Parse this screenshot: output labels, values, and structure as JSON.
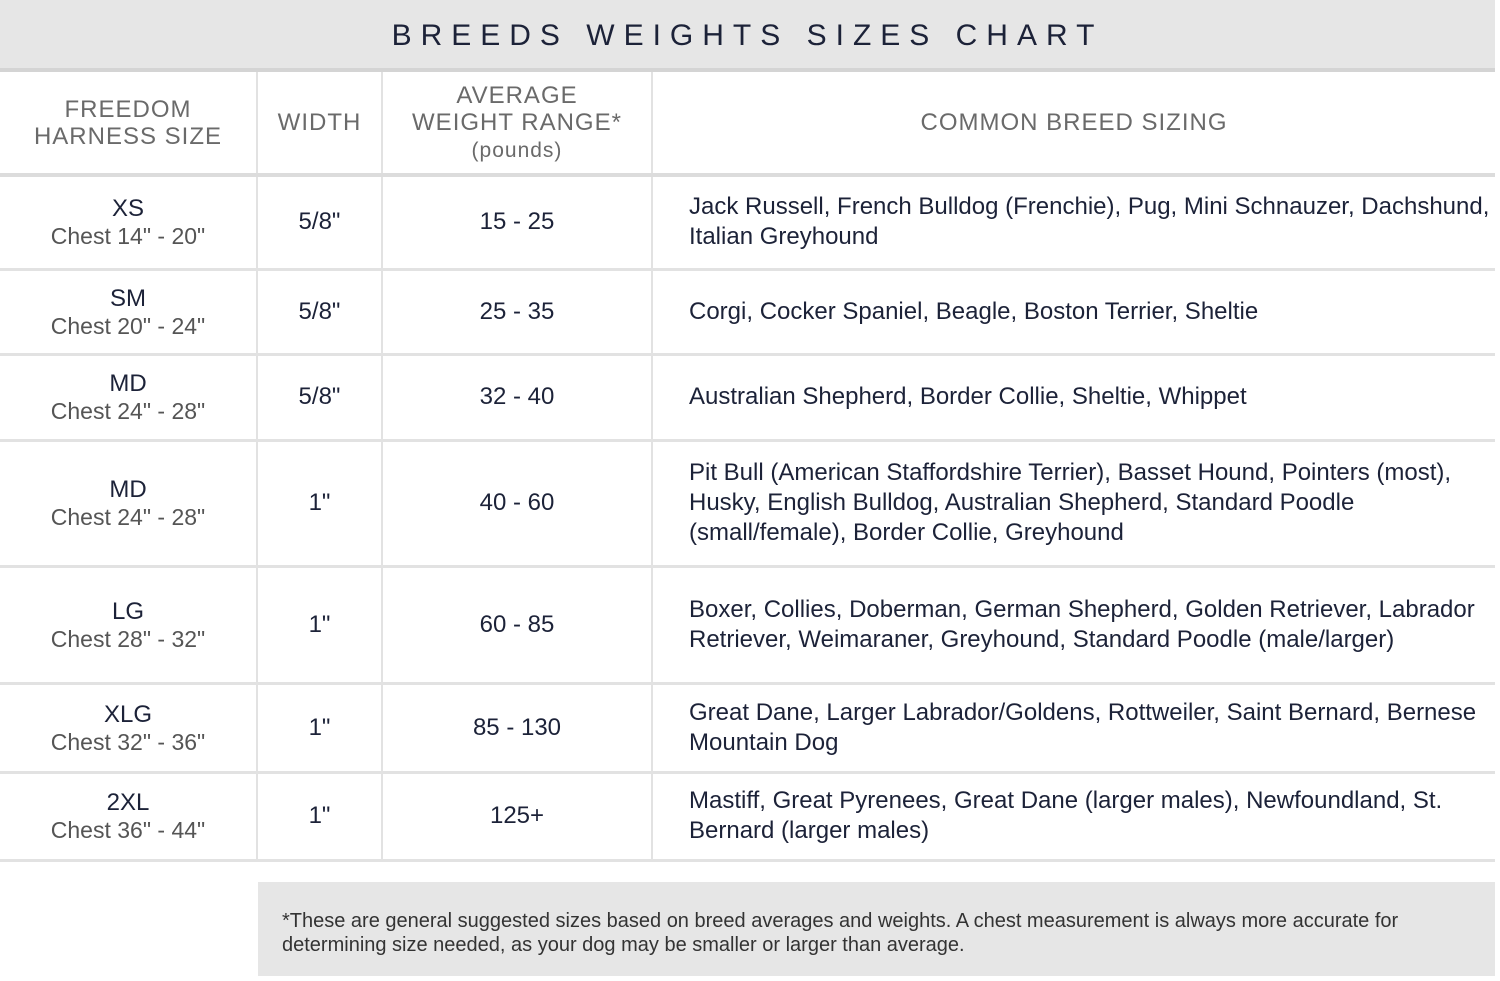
{
  "title": "BREEDS WEIGHTS SIZES CHART",
  "headers": {
    "size_line1": "FREEDOM",
    "size_line2": "HARNESS SIZE",
    "width": "WIDTH",
    "weight_line1": "AVERAGE",
    "weight_line2": "WEIGHT RANGE*",
    "weight_unit": "(pounds)",
    "breeds": "COMMON BREED SIZING"
  },
  "rows": [
    {
      "size": "XS",
      "chest": "Chest 14\" - 20\"",
      "width": "5/8\"",
      "weight": "15 - 25",
      "breeds": "Jack Russell, French Bulldog (Frenchie), Pug, Mini Schnauzer, Dachshund, Italian Greyhound"
    },
    {
      "size": "SM",
      "chest": "Chest 20\" - 24\"",
      "width": "5/8\"",
      "weight": "25 - 35",
      "breeds": "Corgi, Cocker Spaniel, Beagle, Boston Terrier, Sheltie"
    },
    {
      "size": "MD",
      "chest": "Chest 24\" - 28\"",
      "width": "5/8\"",
      "weight": "32 - 40",
      "breeds": "Australian Shepherd, Border Collie, Sheltie, Whippet"
    },
    {
      "size": "MD",
      "chest": "Chest 24\" - 28\"",
      "width": "1\"",
      "weight": "40 - 60",
      "breeds": "Pit Bull (American Staffordshire Terrier), Basset Hound, Pointers (most), Husky, English Bulldog, Australian Shepherd, Standard Poodle (small/female), Border Collie, Greyhound"
    },
    {
      "size": "LG",
      "chest": "Chest 28\" - 32\"",
      "width": "1\"",
      "weight": "60 - 85",
      "breeds": "Boxer, Collies, Doberman, German Shepherd, Golden Retriever, Labrador Retriever, Weimaraner, Greyhound, Standard Poodle (male/larger)"
    },
    {
      "size": "XLG",
      "chest": "Chest 32\" - 36\"",
      "width": "1\"",
      "weight": "85 - 130",
      "breeds": "Great Dane, Larger Labrador/Goldens, Rottweiler, Saint Bernard, Bernese Mountain Dog"
    },
    {
      "size": "2XL",
      "chest": "Chest 36\" - 44\"",
      "width": "1\"",
      "weight": "125+",
      "breeds": "Mastiff, Great Pyrenees, Great Dane (larger males), Newfoundland, St. Bernard (larger males)"
    }
  ],
  "footnote": "*These are general suggested sizes based on breed averages and weights.  A chest measurement is always more accurate for determining size needed, as your dog may be smaller or larger than average."
}
